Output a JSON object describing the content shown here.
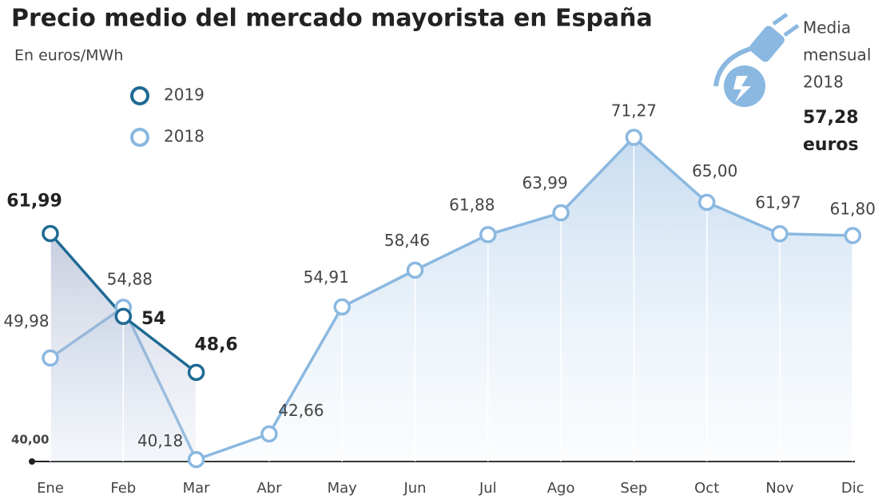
{
  "chart_data": {
    "type": "line",
    "title": "Precio medio del mercado mayorista en España",
    "subtitle": "En euros/MWh",
    "categories": [
      "Ene",
      "Feb",
      "Mar",
      "Abr",
      "May",
      "Jun",
      "Jul",
      "Ago",
      "Sep",
      "Oct",
      "Nov",
      "Dic"
    ],
    "series": [
      {
        "name": "2019",
        "color": "#1f6a94",
        "values": [
          61.99,
          54,
          48.6,
          null,
          null,
          null,
          null,
          null,
          null,
          null,
          null,
          null
        ],
        "value_labels": [
          "61,99",
          "54",
          "48,6",
          null,
          null,
          null,
          null,
          null,
          null,
          null,
          null,
          null
        ]
      },
      {
        "name": "2018",
        "color": "#8ab8e0",
        "values": [
          49.98,
          54.88,
          40.18,
          42.66,
          54.91,
          58.46,
          61.88,
          63.99,
          71.27,
          65.0,
          61.97,
          61.8
        ],
        "value_labels": [
          "49,98",
          "54,88",
          "40,18",
          "42,66",
          "54,91",
          "58,46",
          "61,88",
          "63,99",
          "71,27",
          "65,00",
          "61,97",
          "61,80"
        ]
      }
    ],
    "ylim": [
      40,
      75
    ],
    "yticks": [
      {
        "value": 40,
        "label": "40,00"
      }
    ],
    "annotations": {
      "media_lines": [
        "Media",
        "mensual",
        "2018"
      ],
      "value_lines": [
        "57,28",
        "euros"
      ]
    }
  }
}
